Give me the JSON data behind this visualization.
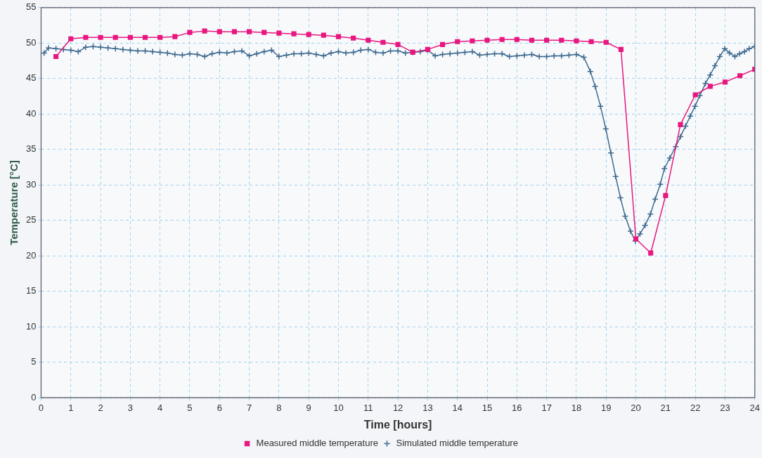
{
  "chart_data": {
    "type": "line",
    "xlabel": "Time [hours]",
    "ylabel": "Temperature [°C]",
    "xlim": [
      0,
      24
    ],
    "ylim": [
      0,
      55
    ],
    "xticks": [
      0,
      1,
      2,
      3,
      4,
      5,
      6,
      7,
      8,
      9,
      10,
      11,
      12,
      13,
      14,
      15,
      16,
      17,
      18,
      19,
      20,
      21,
      22,
      23,
      24
    ],
    "yticks": [
      0,
      5,
      10,
      15,
      20,
      25,
      30,
      35,
      40,
      45,
      50,
      55
    ],
    "grid": true,
    "legend": "bottom",
    "series": [
      {
        "name": "Measured middle temperature",
        "color": "#e8177f",
        "marker": "square",
        "x": [
          0.5,
          1,
          1.5,
          2,
          2.5,
          3,
          3.5,
          4,
          4.5,
          5,
          5.5,
          6,
          6.5,
          7,
          7.5,
          8,
          8.5,
          9,
          9.5,
          10,
          10.5,
          11,
          11.5,
          12,
          12.5,
          13,
          13.5,
          14,
          14.5,
          15,
          15.5,
          16,
          16.5,
          17,
          17.5,
          18,
          18.5,
          19,
          19.5,
          20,
          20.5,
          21,
          21.5,
          22,
          22.5,
          23,
          23.5,
          24
        ],
        "values": [
          48.1,
          50.6,
          50.8,
          50.8,
          50.8,
          50.8,
          50.8,
          50.8,
          50.9,
          51.5,
          51.7,
          51.6,
          51.6,
          51.6,
          51.5,
          51.4,
          51.3,
          51.2,
          51.1,
          50.9,
          50.7,
          50.4,
          50.1,
          49.8,
          48.7,
          49.1,
          49.8,
          50.2,
          50.3,
          50.4,
          50.5,
          50.5,
          50.4,
          50.4,
          50.4,
          50.3,
          50.2,
          50.1,
          49.1,
          22.4,
          20.4,
          28.5,
          38.5,
          42.7,
          43.9,
          44.5,
          45.4,
          46.3
        ]
      },
      {
        "name": "Simulated middle temperature",
        "color": "#3d6a8f",
        "marker": "cross",
        "x": [
          0.1,
          0.25,
          0.5,
          0.75,
          1,
          1.25,
          1.5,
          1.75,
          2,
          2.25,
          2.5,
          2.75,
          3,
          3.25,
          3.5,
          3.75,
          4,
          4.25,
          4.5,
          4.75,
          5,
          5.25,
          5.5,
          5.75,
          6,
          6.25,
          6.5,
          6.75,
          7,
          7.25,
          7.5,
          7.75,
          8,
          8.25,
          8.5,
          8.75,
          9,
          9.25,
          9.5,
          9.75,
          10,
          10.25,
          10.5,
          10.75,
          11,
          11.25,
          11.5,
          11.75,
          12,
          12.25,
          12.5,
          12.75,
          13,
          13.25,
          13.5,
          13.75,
          14,
          14.25,
          14.5,
          14.75,
          15,
          15.25,
          15.5,
          15.75,
          16,
          16.25,
          16.5,
          16.75,
          17,
          17.25,
          17.5,
          17.75,
          18,
          18.25,
          18.47,
          18.63,
          18.81,
          18.99,
          19.16,
          19.32,
          19.48,
          19.64,
          19.82,
          19.98,
          20.14,
          20.31,
          20.49,
          20.65,
          20.82,
          20.96,
          21.14,
          21.34,
          21.5,
          21.67,
          21.83,
          21.99,
          22.15,
          22.34,
          22.5,
          22.66,
          22.82,
          22.99,
          23.15,
          23.33,
          23.49,
          23.65,
          23.81,
          23.99
        ],
        "values": [
          48.6,
          49.3,
          49.2,
          49.1,
          49.0,
          48.8,
          49.4,
          49.5,
          49.4,
          49.3,
          49.2,
          49.1,
          49.0,
          48.9,
          48.9,
          48.8,
          48.7,
          48.6,
          48.4,
          48.3,
          48.5,
          48.4,
          48.1,
          48.5,
          48.7,
          48.6,
          48.8,
          48.9,
          48.2,
          48.5,
          48.8,
          49.0,
          48.1,
          48.3,
          48.5,
          48.5,
          48.6,
          48.4,
          48.2,
          48.6,
          48.8,
          48.6,
          48.7,
          49.0,
          49.1,
          48.7,
          48.6,
          48.9,
          48.9,
          48.6,
          48.7,
          48.8,
          49.0,
          48.2,
          48.4,
          48.5,
          48.6,
          48.7,
          48.8,
          48.3,
          48.4,
          48.5,
          48.5,
          48.1,
          48.2,
          48.3,
          48.4,
          48.1,
          48.1,
          48.2,
          48.2,
          48.3,
          48.4,
          48.0,
          46.0,
          43.9,
          41.1,
          37.9,
          34.5,
          31.2,
          28.2,
          25.6,
          23.5,
          22.1,
          23.1,
          24.3,
          25.9,
          28.0,
          30.1,
          32.3,
          33.8,
          35.4,
          36.8,
          38.3,
          39.7,
          41.1,
          42.6,
          44.3,
          45.5,
          46.8,
          48.1,
          49.2,
          48.6,
          48.1,
          48.5,
          48.8,
          49.2,
          49.5
        ]
      }
    ]
  }
}
